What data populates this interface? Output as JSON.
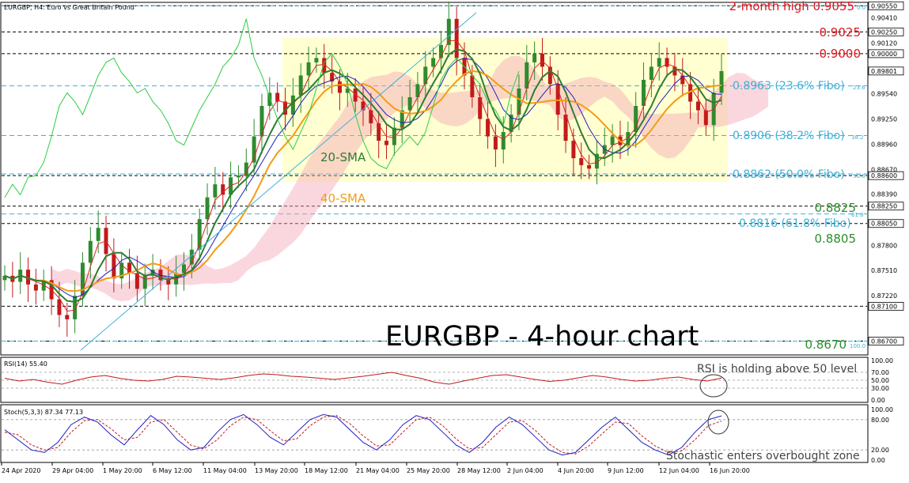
{
  "window_title": "EURGBP, H4: Euro vs Great Britain Pound",
  "main_title": "EURGBP - 4-hour chart",
  "colors": {
    "up_candle": "#2e8b2e",
    "down_candle": "#c21a1a",
    "sma20": "#2e7d32",
    "sma40": "#f39c12",
    "tenkan": "#d62728",
    "kijun": "#1f1fbf",
    "chikou": "#2ecc40",
    "cloud": "#f4a6b5",
    "fibo": "#3fb0d6",
    "range_box": "#ffffcc",
    "red_label": "#e0141e",
    "green_label": "#2e8b2e",
    "rsi": "#c21a1a",
    "stoch_main": "#1f1fbf",
    "stoch_signal": "#c21a1a"
  },
  "chart_data": [
    {
      "type": "candlestick",
      "title": "EURGBP - 4-hour chart",
      "ylim": [
        0.8655,
        0.9058
      ],
      "y_ticks": [
        "0.90550",
        "0.90410",
        "0.90250",
        "0.90120",
        "0.90000",
        "0.89801",
        "0.89540",
        "0.89250",
        "0.88960",
        "0.88670",
        "0.88600",
        "0.88390",
        "0.88250",
        "0.88050",
        "0.87800",
        "0.87510",
        "0.87220",
        "0.87100",
        "0.86700"
      ],
      "highlighted_ticks": [
        "0.90550",
        "0.90250",
        "0.90000",
        "0.89801",
        "0.88600",
        "0.88250",
        "0.88050",
        "0.87100",
        "0.86700"
      ],
      "x_labels": [
        "24 Apr 2020",
        "29 Apr 04:00",
        "1 May 20:00",
        "6 May 12:00",
        "11 May 04:00",
        "13 May 20:00",
        "18 May 12:00",
        "21 May 04:00",
        "25 May 20:00",
        "28 May 12:00",
        "2 Jun 04:00",
        "4 Jun 20:00",
        "9 Jun 12:00",
        "12 Jun 04:00",
        "16 Jun 20:00"
      ],
      "close_series": [
        0.8745,
        0.8738,
        0.8752,
        0.8735,
        0.8728,
        0.874,
        0.8718,
        0.87,
        0.8695,
        0.8722,
        0.876,
        0.8785,
        0.88,
        0.877,
        0.8742,
        0.876,
        0.8748,
        0.873,
        0.8745,
        0.8752,
        0.874,
        0.8735,
        0.8748,
        0.8758,
        0.8775,
        0.881,
        0.8835,
        0.885,
        0.8838,
        0.8858,
        0.886,
        0.8875,
        0.8905,
        0.894,
        0.8955,
        0.8945,
        0.893,
        0.8952,
        0.8975,
        0.899,
        0.8995,
        0.8978,
        0.8968,
        0.8955,
        0.896,
        0.8945,
        0.8935,
        0.892,
        0.89,
        0.8895,
        0.8915,
        0.8935,
        0.895,
        0.8965,
        0.8985,
        0.8995,
        0.901,
        0.904,
        0.8995,
        0.8975,
        0.895,
        0.8925,
        0.8905,
        0.889,
        0.891,
        0.893,
        0.896,
        0.899,
        0.9,
        0.8985,
        0.8965,
        0.893,
        0.89,
        0.888,
        0.8872,
        0.8868,
        0.8885,
        0.8895,
        0.8905,
        0.8895,
        0.891,
        0.894,
        0.897,
        0.8985,
        0.8995,
        0.8985,
        0.8975,
        0.8965,
        0.8945,
        0.8935,
        0.8918,
        0.8955,
        0.898
      ],
      "overlays": [
        {
          "name": "20-SMA",
          "color": "#2e7d32"
        },
        {
          "name": "40-SMA",
          "color": "#f39c12"
        },
        {
          "name": "Ichimoku cloud"
        }
      ],
      "horizontal_levels": [
        {
          "label": "2-month high 0.9055",
          "value": 0.9055,
          "color": "#e0141e"
        },
        {
          "label": "0.9025",
          "value": 0.9025,
          "color": "#e0141e"
        },
        {
          "label": "0.9000",
          "value": 0.9,
          "color": "#e0141e"
        },
        {
          "label": "0.8825",
          "value": 0.8825,
          "color": "#2e8b2e"
        },
        {
          "label": "0.8805",
          "value": 0.8805,
          "color": "#2e8b2e"
        },
        {
          "label": "0.8670",
          "value": 0.867,
          "color": "#2e8b2e"
        }
      ],
      "fibonacci": [
        {
          "label": "0.8963 (23.6% Fibo)",
          "value": 0.8963,
          "tag": "23.6"
        },
        {
          "label": "0.8906 (38.2% Fibo)",
          "value": 0.8906,
          "tag": "38.2"
        },
        {
          "label": "0.8862 (50.0% Fibo)",
          "value": 0.8862,
          "tag": "50.0"
        },
        {
          "label": "0.8816 (61.8% Fibo)",
          "value": 0.8816,
          "tag": "61.8"
        },
        {
          "label": "",
          "value": 0.867,
          "tag": "100.0"
        },
        {
          "label": "",
          "value": 0.9055,
          "tag": "0.0"
        }
      ],
      "range_box": {
        "from": 0.8862,
        "to": 0.9025
      }
    },
    {
      "type": "line",
      "title": "RSI(14) 55.40",
      "ylim": [
        0,
        100
      ],
      "y_ticks": [
        "100.00",
        "70.00",
        "50.00",
        "30.00",
        "0.00"
      ],
      "levels": [
        70,
        50,
        30
      ],
      "values": [
        55,
        48,
        52,
        45,
        40,
        50,
        58,
        62,
        55,
        50,
        48,
        52,
        60,
        58,
        55,
        52,
        56,
        62,
        66,
        64,
        60,
        58,
        55,
        52,
        56,
        60,
        65,
        70,
        62,
        55,
        45,
        40,
        48,
        55,
        62,
        64,
        58,
        52,
        47,
        50,
        56,
        62,
        58,
        52,
        48,
        50,
        55,
        58,
        52,
        48,
        55.4
      ],
      "annotation": "RSI is holding above 50 level"
    },
    {
      "type": "line",
      "title": "Stoch(5,3,3) 87.34 77.13",
      "ylim": [
        0,
        100
      ],
      "y_ticks": [
        "100.00",
        "80.00",
        "20.00",
        "0.00"
      ],
      "levels": [
        80,
        20
      ],
      "series": [
        {
          "name": "main",
          "values": [
            60,
            40,
            20,
            15,
            35,
            70,
            85,
            75,
            50,
            30,
            60,
            88,
            70,
            40,
            20,
            25,
            55,
            80,
            90,
            70,
            45,
            30,
            55,
            80,
            90,
            85,
            60,
            35,
            20,
            40,
            70,
            88,
            80,
            55,
            30,
            15,
            35,
            65,
            85,
            70,
            45,
            20,
            10,
            15,
            40,
            65,
            85,
            60,
            35,
            20,
            10,
            25,
            55,
            80,
            87.34
          ]
        },
        {
          "name": "signal",
          "values": [
            55,
            50,
            30,
            20,
            25,
            55,
            78,
            80,
            62,
            40,
            45,
            75,
            80,
            55,
            30,
            22,
            40,
            68,
            85,
            80,
            58,
            38,
            42,
            68,
            85,
            88,
            72,
            48,
            28,
            30,
            55,
            80,
            85,
            68,
            42,
            22,
            25,
            50,
            75,
            78,
            58,
            32,
            15,
            12,
            28,
            52,
            75,
            72,
            48,
            28,
            15,
            18,
            40,
            68,
            77.13
          ]
        }
      ],
      "annotation": "Stochastic enters overbought zone"
    }
  ]
}
